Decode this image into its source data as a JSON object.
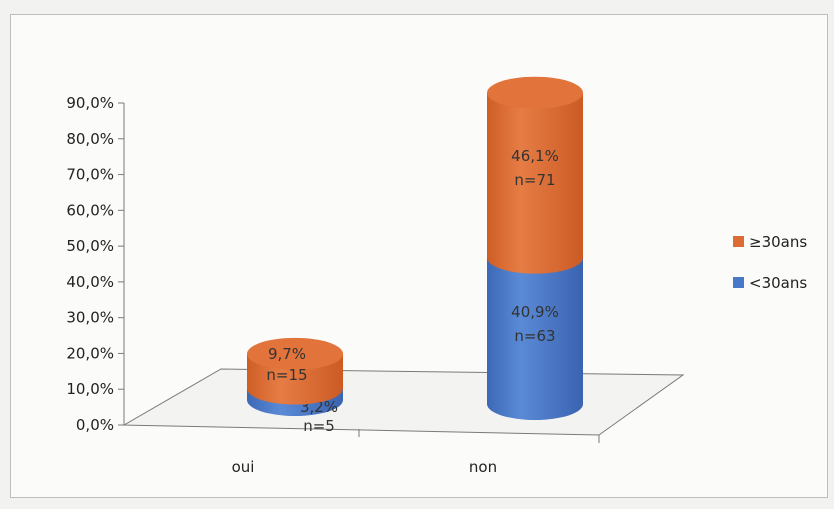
{
  "chart_data": {
    "type": "bar",
    "stacked": true,
    "style": "3d-cylinder",
    "categories": [
      "oui",
      "non"
    ],
    "series": [
      {
        "name": "<30ans",
        "color": "#4a78c8",
        "values": [
          3.2,
          40.9
        ],
        "labels": [
          [
            "3,2%",
            "n=5"
          ],
          [
            "40,9%",
            "n=63"
          ]
        ]
      },
      {
        "name": "≥30ans",
        "color": "#dc6b34",
        "values": [
          9.7,
          46.1
        ],
        "labels": [
          [
            "9,7%",
            "n=15"
          ],
          [
            "46,1%",
            "n=71"
          ]
        ]
      }
    ],
    "ylim": [
      0,
      90
    ],
    "yticks": [
      "0,0%",
      "10,0%",
      "20,0%",
      "30,0%",
      "40,0%",
      "50,0%",
      "60,0%",
      "70,0%",
      "80,0%",
      "90,0%"
    ],
    "legend_position": "right",
    "grid": false
  }
}
